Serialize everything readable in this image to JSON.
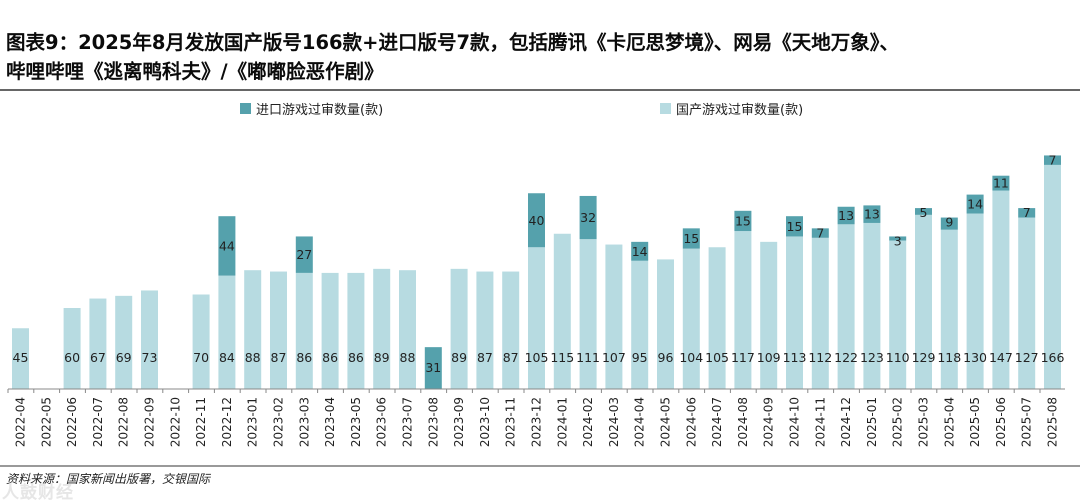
{
  "title": {
    "line1": "图表9：2025年8月发放国产版号166款+进口版号7款，包括腾讯《卡厄思梦境》、网易《天地万象》、",
    "line2": "哔哩哔哩《逃离鸭科夫》/《嘟嘟脸恶作剧》"
  },
  "source": "资料来源：国家新闻出版署，交银国际",
  "watermark": "人鼓财经",
  "colors": {
    "domestic": "#b7dbe1",
    "imported": "#55a1ac",
    "axis": "#888888",
    "label": "#222222"
  },
  "chart_data": {
    "type": "bar",
    "stacked": true,
    "legend_position": "top-center",
    "categories": [
      "2022-04",
      "2022-05",
      "2022-06",
      "2022-07",
      "2022-08",
      "2022-09",
      "2022-10",
      "2022-11",
      "2022-12",
      "2023-01",
      "2023-02",
      "2023-03",
      "2023-04",
      "2023-05",
      "2023-06",
      "2023-07",
      "2023-08",
      "2023-09",
      "2023-10",
      "2023-11",
      "2023-12",
      "2024-01",
      "2024-02",
      "2024-03",
      "2024-04",
      "2024-05",
      "2024-06",
      "2024-07",
      "2024-08",
      "2024-09",
      "2024-10",
      "2024-11",
      "2024-12",
      "2025-01",
      "2025-02",
      "2025-03",
      "2025-04",
      "2025-05",
      "2025-06",
      "2025-07",
      "2025-08"
    ],
    "series": [
      {
        "name": "国产游戏过审数量(款)",
        "values": [
          45,
          null,
          60,
          67,
          69,
          73,
          null,
          70,
          84,
          88,
          87,
          86,
          86,
          86,
          89,
          88,
          null,
          89,
          87,
          87,
          105,
          115,
          111,
          107,
          95,
          96,
          104,
          105,
          117,
          109,
          113,
          112,
          122,
          123,
          110,
          129,
          118,
          130,
          147,
          127,
          166
        ]
      },
      {
        "name": "进口游戏过审数量(款)",
        "values": [
          null,
          null,
          null,
          null,
          null,
          null,
          null,
          null,
          44,
          null,
          null,
          27,
          null,
          null,
          null,
          null,
          31,
          null,
          null,
          null,
          40,
          null,
          32,
          null,
          14,
          null,
          15,
          null,
          15,
          null,
          15,
          7,
          13,
          13,
          3,
          5,
          9,
          14,
          11,
          7,
          7
        ]
      }
    ],
    "legend": [
      "进口游戏过审数量(款)",
      "国产游戏过审数量(款)"
    ],
    "ylim": [
      0,
      175
    ],
    "xlabel": "",
    "ylabel": "",
    "grid": false
  }
}
